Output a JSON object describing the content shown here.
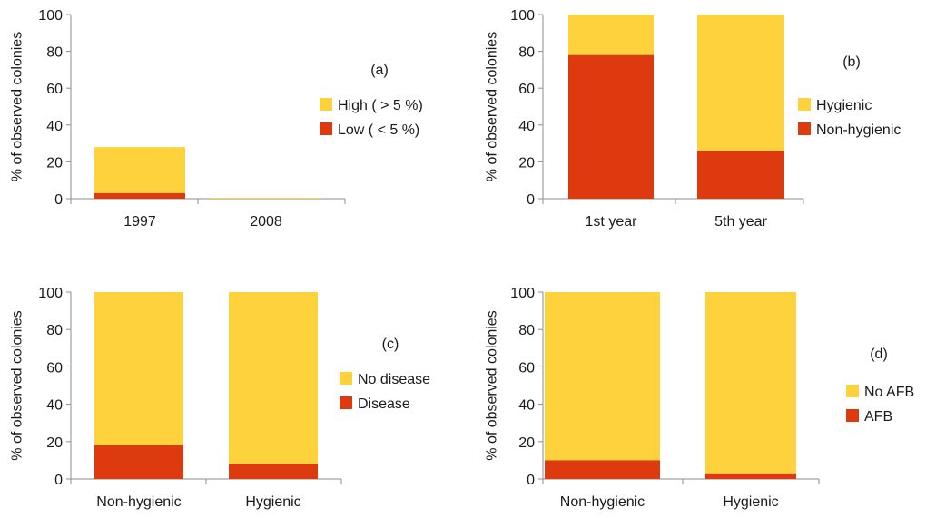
{
  "colors": {
    "top": "#FDD23C",
    "bottom": "#DD3A10",
    "axis": "#8c8c8c"
  },
  "chart_data": [
    {
      "type": "bar",
      "stacked": true,
      "panel": "(a)",
      "ylabel": "% of observed colonies",
      "ylim": [
        0,
        100
      ],
      "yticks": [
        "0",
        "20",
        "40",
        "60",
        "80",
        "100"
      ],
      "categories": [
        "1997",
        "2008"
      ],
      "series": [
        {
          "name": "Low ( < 5 %)",
          "role": "bottom",
          "values": [
            3,
            0
          ]
        },
        {
          "name": "High ( > 5 %)",
          "role": "top",
          "values": [
            25,
            0.5
          ]
        }
      ],
      "legend": [
        "High ( > 5 %)",
        "Low ( < 5 %)"
      ],
      "legend_placement": "right"
    },
    {
      "type": "bar",
      "stacked": true,
      "panel": "(b)",
      "ylabel": "% of observed colonies",
      "ylim": [
        0,
        100
      ],
      "yticks": [
        "0",
        "20",
        "40",
        "60",
        "80",
        "100"
      ],
      "categories": [
        "1st year",
        "5th year"
      ],
      "series": [
        {
          "name": "Non-hygienic",
          "role": "bottom",
          "values": [
            78,
            26
          ]
        },
        {
          "name": "Hygienic",
          "role": "top",
          "values": [
            22,
            74
          ]
        }
      ],
      "legend": [
        "Hygienic",
        "Non-hygienic"
      ],
      "legend_placement": "right"
    },
    {
      "type": "bar",
      "stacked": true,
      "panel": "(c)",
      "ylabel": "% of observed colonies",
      "ylim": [
        0,
        100
      ],
      "yticks": [
        "0",
        "20",
        "40",
        "60",
        "80",
        "100"
      ],
      "categories": [
        "Non-hygienic",
        "Hygienic"
      ],
      "series": [
        {
          "name": "Disease",
          "role": "bottom",
          "values": [
            18,
            8
          ]
        },
        {
          "name": "No disease",
          "role": "top",
          "values": [
            82,
            92
          ]
        }
      ],
      "legend": [
        "No disease",
        "Disease"
      ],
      "legend_placement": "right"
    },
    {
      "type": "bar",
      "stacked": true,
      "panel": "(d)",
      "ylabel": "% of observed colonies",
      "ylim": [
        0,
        100
      ],
      "yticks": [
        "0",
        "20",
        "40",
        "60",
        "80",
        "100"
      ],
      "categories": [
        "Non-hygienic",
        "Hygienic"
      ],
      "series": [
        {
          "name": "AFB",
          "role": "bottom",
          "values": [
            10,
            3
          ]
        },
        {
          "name": "No AFB",
          "role": "top",
          "values": [
            90,
            97
          ]
        }
      ],
      "legend": [
        "No AFB",
        "AFB"
      ],
      "legend_placement": "right"
    }
  ]
}
